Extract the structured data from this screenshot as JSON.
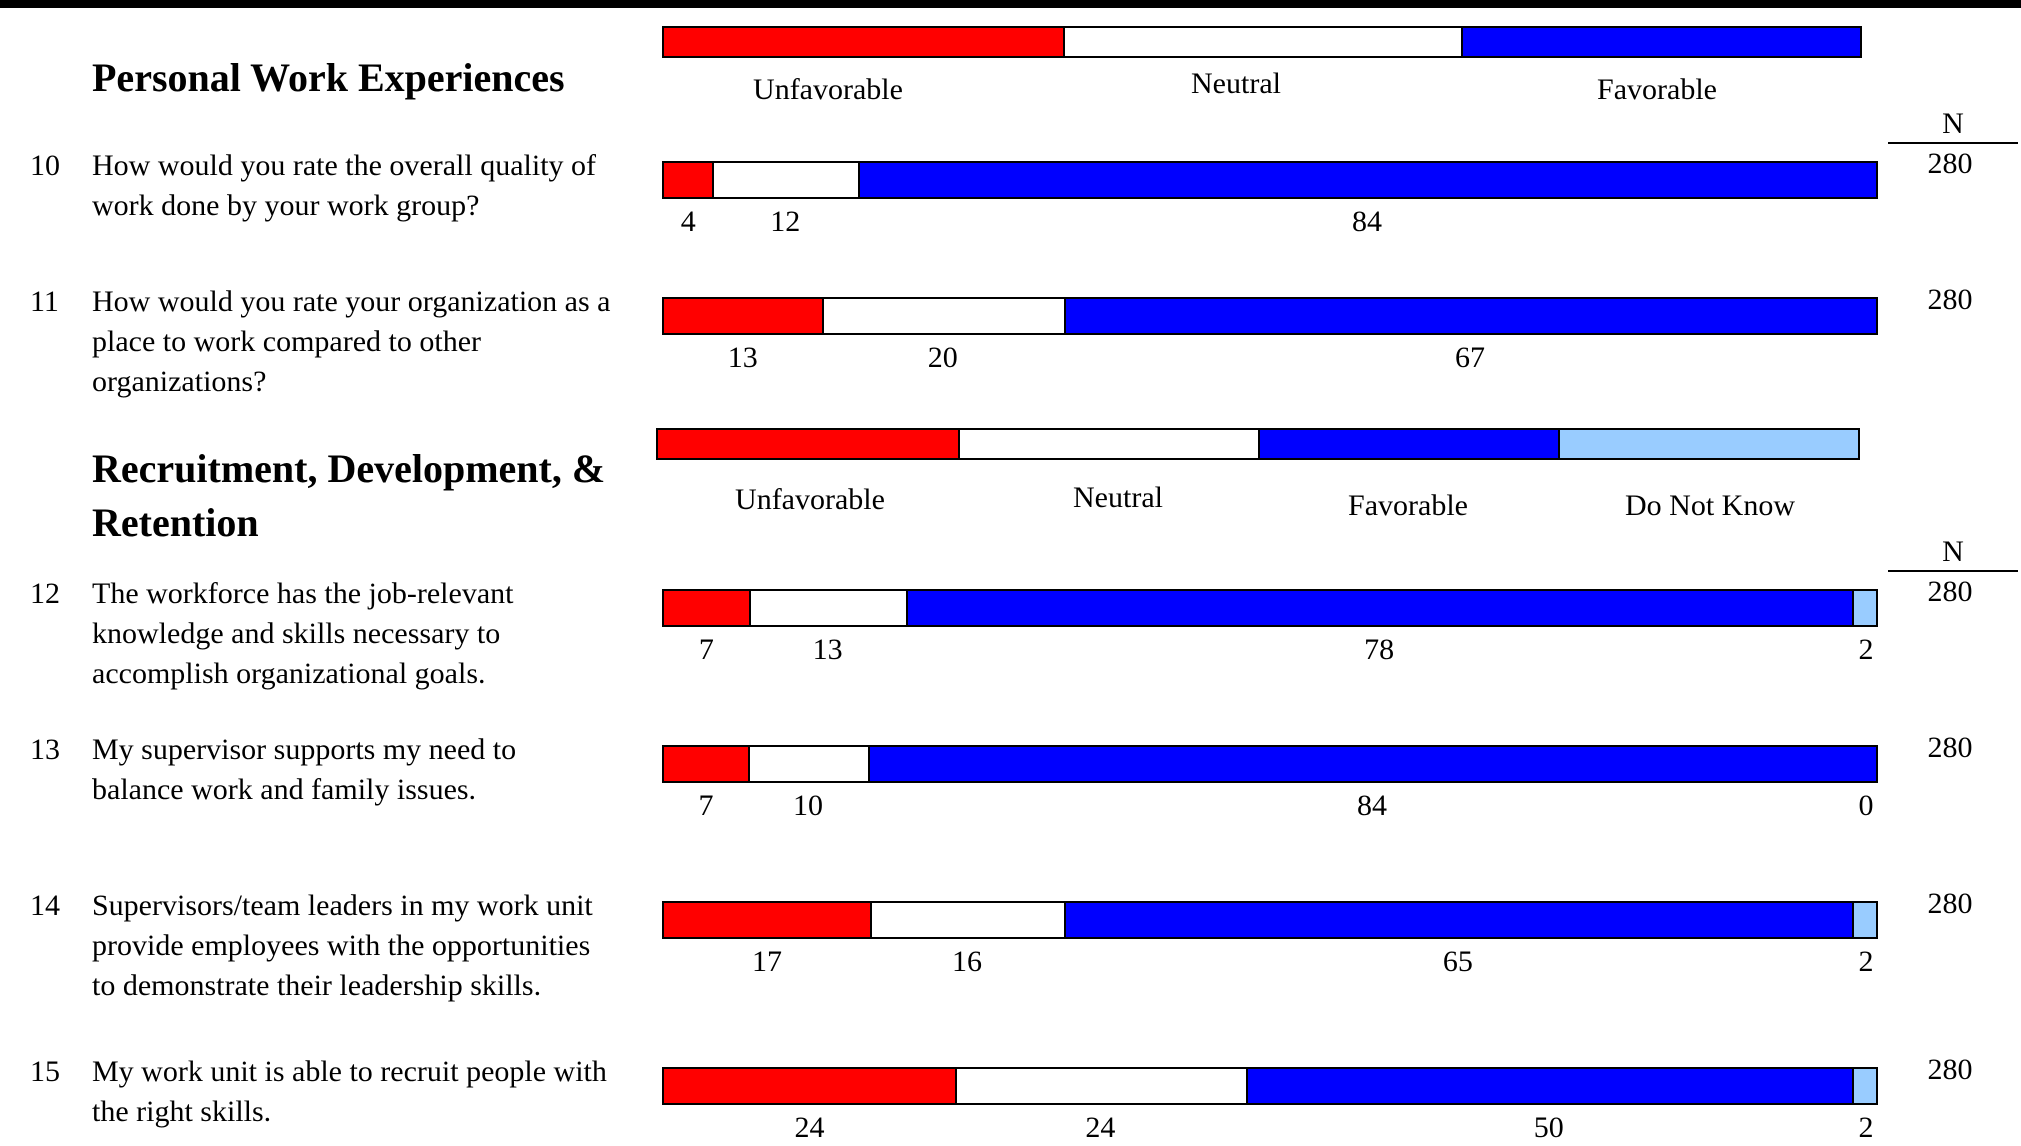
{
  "colors": {
    "unfavorable": "#ff0000",
    "neutral": "#ffffff",
    "favorable": "#0000ff",
    "do_not_know": "#99ccff"
  },
  "sections": [
    {
      "title": "Personal Work Experiences",
      "legend": [
        "Unfavorable",
        "Neutral",
        "Favorable"
      ],
      "n_header": "N"
    },
    {
      "title_line1": "Recruitment, Development, &",
      "title_line2": "Retention",
      "legend": [
        "Unfavorable",
        "Neutral",
        "Favorable",
        "Do Not Know"
      ],
      "n_header": "N"
    }
  ],
  "questions": [
    {
      "num": "10",
      "lines": [
        "How would you rate the overall quality of",
        "work done by your work group?"
      ],
      "n": "280"
    },
    {
      "num": "11",
      "lines": [
        "How would you rate your organization as a",
        "place to work compared to other",
        "organizations?"
      ],
      "n": "280"
    },
    {
      "num": "12",
      "lines": [
        "The workforce has the job-relevant",
        "knowledge and skills necessary to",
        "accomplish organizational goals."
      ],
      "n": "280"
    },
    {
      "num": "13",
      "lines": [
        "My supervisor supports my need to",
        "balance work and family issues."
      ],
      "n": "280"
    },
    {
      "num": "14",
      "lines": [
        "Supervisors/team leaders in my work unit",
        "provide employees with the opportunities",
        "to demonstrate their leadership skills."
      ],
      "n": "280"
    },
    {
      "num": "15",
      "lines": [
        "My work unit is able to recruit people with",
        "the right skills."
      ],
      "n": "280"
    }
  ],
  "chart_data": {
    "type": "bar",
    "stacked": true,
    "orientation": "horizontal",
    "unit": "percent",
    "categories": [
      "10",
      "11",
      "12",
      "13",
      "14",
      "15"
    ],
    "series": [
      {
        "name": "Unfavorable",
        "values": [
          4,
          13,
          7,
          7,
          17,
          24
        ]
      },
      {
        "name": "Neutral",
        "values": [
          12,
          20,
          13,
          10,
          16,
          24
        ]
      },
      {
        "name": "Favorable",
        "values": [
          84,
          67,
          78,
          84,
          65,
          50
        ]
      },
      {
        "name": "Do Not Know",
        "values": [
          null,
          null,
          2,
          0,
          2,
          2
        ]
      }
    ]
  }
}
